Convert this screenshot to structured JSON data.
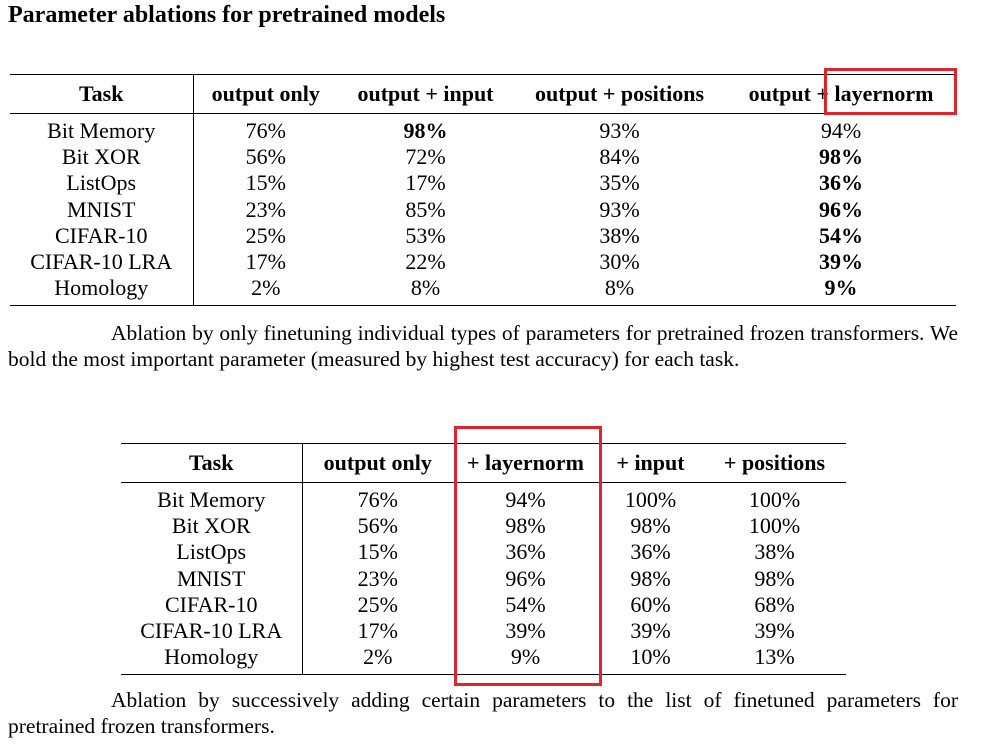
{
  "title": "Parameter ablations for pretrained models",
  "table1": {
    "headers": [
      "Task",
      "output only",
      "output + input",
      "output + positions",
      "output + layernorm"
    ],
    "rows": [
      {
        "task": "Bit Memory",
        "cells": [
          "76%",
          "98%",
          "93%",
          "94%"
        ],
        "bold": 1
      },
      {
        "task": "Bit XOR",
        "cells": [
          "56%",
          "72%",
          "84%",
          "98%"
        ],
        "bold": 3
      },
      {
        "task": "ListOps",
        "cells": [
          "15%",
          "17%",
          "35%",
          "36%"
        ],
        "bold": 3
      },
      {
        "task": "MNIST",
        "cells": [
          "23%",
          "85%",
          "93%",
          "96%"
        ],
        "bold": 3
      },
      {
        "task": "CIFAR-10",
        "cells": [
          "25%",
          "53%",
          "38%",
          "54%"
        ],
        "bold": 3
      },
      {
        "task": "CIFAR-10 LRA",
        "cells": [
          "17%",
          "22%",
          "30%",
          "39%"
        ],
        "bold": 3
      },
      {
        "task": "Homology",
        "cells": [
          "2%",
          "8%",
          "8%",
          "9%"
        ],
        "bold": 3
      }
    ],
    "caption": "Ablation by only finetuning individual types of parameters for pretrained frozen transformers. We bold the most important parameter (measured by highest test accuracy) for each task."
  },
  "table2": {
    "headers": [
      "Task",
      "output only",
      "+ layernorm",
      "+ input",
      "+ positions"
    ],
    "rows": [
      {
        "task": "Bit Memory",
        "cells": [
          "76%",
          "94%",
          "100%",
          "100%"
        ]
      },
      {
        "task": "Bit XOR",
        "cells": [
          "56%",
          "98%",
          "98%",
          "100%"
        ]
      },
      {
        "task": "ListOps",
        "cells": [
          "15%",
          "36%",
          "36%",
          "38%"
        ]
      },
      {
        "task": "MNIST",
        "cells": [
          "23%",
          "96%",
          "98%",
          "98%"
        ]
      },
      {
        "task": "CIFAR-10",
        "cells": [
          "25%",
          "54%",
          "60%",
          "68%"
        ]
      },
      {
        "task": "CIFAR-10 LRA",
        "cells": [
          "17%",
          "39%",
          "39%",
          "39%"
        ]
      },
      {
        "task": "Homology",
        "cells": [
          "2%",
          "9%",
          "10%",
          "13%"
        ]
      }
    ],
    "caption": "Ablation by successively adding certain parameters to the list of finetuned parameters for pretrained frozen transformers."
  },
  "highlight_color": "#e0242b"
}
